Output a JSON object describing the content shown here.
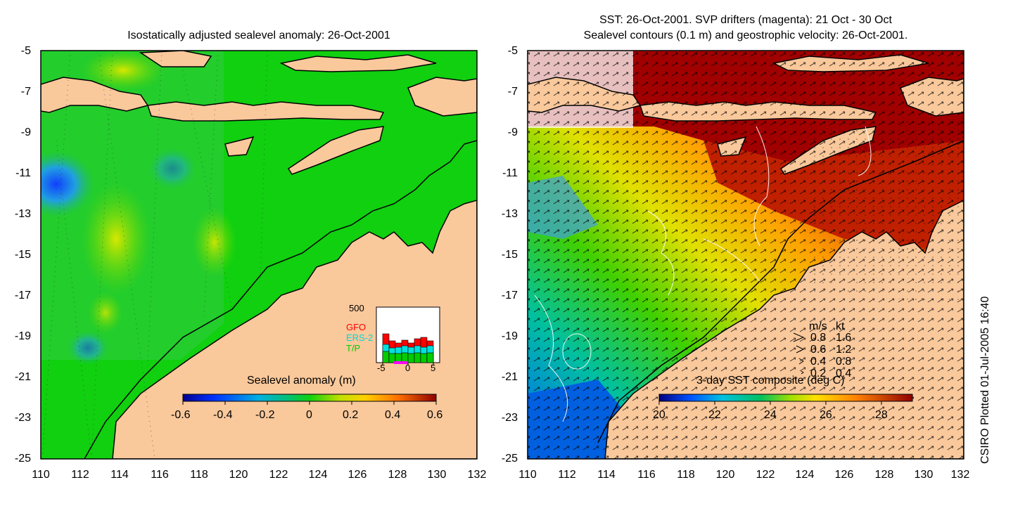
{
  "left_panel": {
    "title": "Isostatically adjusted sealevel anomaly: 26-Oct-2001",
    "colorbar_title": "Sealevel anomaly (m)",
    "colorbar_ticks": [
      "-0.6",
      "-0.4",
      "-0.2",
      "0",
      "0.2",
      "0.4",
      "0.6"
    ],
    "colorbar_range": [
      -0.6,
      0.6
    ],
    "inset": {
      "ymax_label": "500",
      "x_ticks": [
        "-5",
        "0",
        "5"
      ],
      "legend": [
        {
          "name": "GFO",
          "color": "#ff0000"
        },
        {
          "name": "ERS-2",
          "color": "#00e0e0"
        },
        {
          "name": "T/P",
          "color": "#00cc00"
        }
      ]
    }
  },
  "right_panel": {
    "title_line1": "SST: 26-Oct-2001. SVP drifters (magenta): 21 Oct - 30 Oct",
    "title_line2": "Sealevel contours (0.1 m) and geostrophic velocity: 26-Oct-2001.",
    "colorbar_title": "3-day SST composite (deg C)",
    "colorbar_ticks": [
      "20",
      "22",
      "24",
      "26",
      "28"
    ],
    "colorbar_range": [
      20,
      29.5
    ],
    "velocity_legend": {
      "header_ms": "m/s",
      "header_kt": "kt",
      "rows": [
        {
          "ms": "0.8",
          "kt": "1.6"
        },
        {
          "ms": "0.6",
          "kt": "1.2"
        },
        {
          "ms": "0.4",
          "kt": "0.8"
        },
        {
          "ms": "0.2",
          "kt": "0.4"
        }
      ]
    }
  },
  "axes": {
    "y_ticks": [
      "-5",
      "-7",
      "-9",
      "-11",
      "-13",
      "-15",
      "-17",
      "-19",
      "-21",
      "-23",
      "-25"
    ],
    "x_ticks": [
      "110",
      "112",
      "114",
      "116",
      "118",
      "120",
      "122",
      "124",
      "126",
      "128",
      "130",
      "132"
    ],
    "lon_range": [
      110,
      132
    ],
    "lat_range": [
      -25,
      -5
    ]
  },
  "credit": "CSIRO Plotted 01-Jul-2005 16:40",
  "colors": {
    "land": "#f9c89b",
    "ocean_left": "#10d010",
    "ocean_right_warm": "#a00000"
  }
}
